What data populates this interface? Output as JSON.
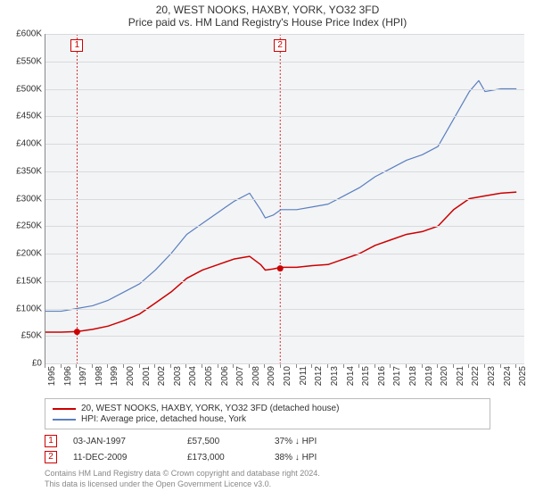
{
  "title_line1": "20, WEST NOOKS, HAXBY, YORK, YO32 3FD",
  "title_line2": "Price paid vs. HM Land Registry's House Price Index (HPI)",
  "chart": {
    "type": "line",
    "background_color": "#f3f4f6",
    "grid_color": "#d8dadd",
    "axis_color": "#888888",
    "xlim": [
      1995,
      2025.5
    ],
    "ylim": [
      0,
      600
    ],
    "ytick_step": 50,
    "y_prefix": "£",
    "y_suffix": "K",
    "y_ticks": [
      0,
      50,
      100,
      150,
      200,
      250,
      300,
      350,
      400,
      450,
      500,
      550,
      600
    ],
    "x_ticks": [
      1995,
      1996,
      1997,
      1998,
      1999,
      2000,
      2001,
      2002,
      2003,
      2004,
      2005,
      2006,
      2007,
      2008,
      2009,
      2010,
      2011,
      2012,
      2013,
      2014,
      2015,
      2016,
      2017,
      2018,
      2019,
      2020,
      2021,
      2022,
      2023,
      2024,
      2025
    ],
    "label_fontsize": 10,
    "series": [
      {
        "name": "20, WEST NOOKS, HAXBY, YORK, YO32 3FD (detached house)",
        "color": "#cc0000",
        "line_width": 1.5,
        "data": [
          [
            1995,
            57
          ],
          [
            1996,
            57
          ],
          [
            1997,
            58
          ],
          [
            1998,
            62
          ],
          [
            1999,
            68
          ],
          [
            2000,
            78
          ],
          [
            2001,
            90
          ],
          [
            2002,
            110
          ],
          [
            2003,
            130
          ],
          [
            2004,
            155
          ],
          [
            2005,
            170
          ],
          [
            2006,
            180
          ],
          [
            2007,
            190
          ],
          [
            2008,
            195
          ],
          [
            2008.7,
            180
          ],
          [
            2009,
            170
          ],
          [
            2009.5,
            172
          ],
          [
            2010,
            175
          ],
          [
            2011,
            175
          ],
          [
            2012,
            178
          ],
          [
            2013,
            180
          ],
          [
            2014,
            190
          ],
          [
            2015,
            200
          ],
          [
            2016,
            215
          ],
          [
            2017,
            225
          ],
          [
            2018,
            235
          ],
          [
            2019,
            240
          ],
          [
            2020,
            250
          ],
          [
            2021,
            280
          ],
          [
            2022,
            300
          ],
          [
            2023,
            305
          ],
          [
            2024,
            310
          ],
          [
            2025,
            312
          ]
        ]
      },
      {
        "name": "HPI: Average price, detached house, York",
        "color": "#5a7fbf",
        "line_width": 1.2,
        "data": [
          [
            1995,
            95
          ],
          [
            1996,
            95
          ],
          [
            1997,
            100
          ],
          [
            1998,
            105
          ],
          [
            1999,
            115
          ],
          [
            2000,
            130
          ],
          [
            2001,
            145
          ],
          [
            2002,
            170
          ],
          [
            2003,
            200
          ],
          [
            2004,
            235
          ],
          [
            2005,
            255
          ],
          [
            2006,
            275
          ],
          [
            2007,
            295
          ],
          [
            2008,
            310
          ],
          [
            2008.7,
            280
          ],
          [
            2009,
            265
          ],
          [
            2009.5,
            270
          ],
          [
            2010,
            280
          ],
          [
            2011,
            280
          ],
          [
            2012,
            285
          ],
          [
            2013,
            290
          ],
          [
            2014,
            305
          ],
          [
            2015,
            320
          ],
          [
            2016,
            340
          ],
          [
            2017,
            355
          ],
          [
            2018,
            370
          ],
          [
            2019,
            380
          ],
          [
            2020,
            395
          ],
          [
            2021,
            445
          ],
          [
            2022,
            495
          ],
          [
            2022.6,
            515
          ],
          [
            2023,
            495
          ],
          [
            2024,
            500
          ],
          [
            2025,
            500
          ]
        ]
      }
    ],
    "sale_markers": [
      {
        "label": "1",
        "x": 1997.01,
        "y": 57.5,
        "color": "#cc0000"
      },
      {
        "label": "2",
        "x": 2009.95,
        "y": 173,
        "color": "#cc0000"
      }
    ],
    "marker_dashed_line_color": "#cc0000",
    "marker_box_border": "#cc0000",
    "marker_box_bg": "#ffffff"
  },
  "legend": {
    "items": [
      {
        "color": "#cc0000",
        "label": "20, WEST NOOKS, HAXBY, YORK, YO32 3FD (detached house)"
      },
      {
        "color": "#5a7fbf",
        "label": "HPI: Average price, detached house, York"
      }
    ]
  },
  "transactions": [
    {
      "marker": "1",
      "date": "03-JAN-1997",
      "price": "£57,500",
      "pct": "37% ↓ HPI"
    },
    {
      "marker": "2",
      "date": "11-DEC-2009",
      "price": "£173,000",
      "pct": "38% ↓ HPI"
    }
  ],
  "footnote_line1": "Contains HM Land Registry data © Crown copyright and database right 2024.",
  "footnote_line2": "This data is licensed under the Open Government Licence v3.0."
}
